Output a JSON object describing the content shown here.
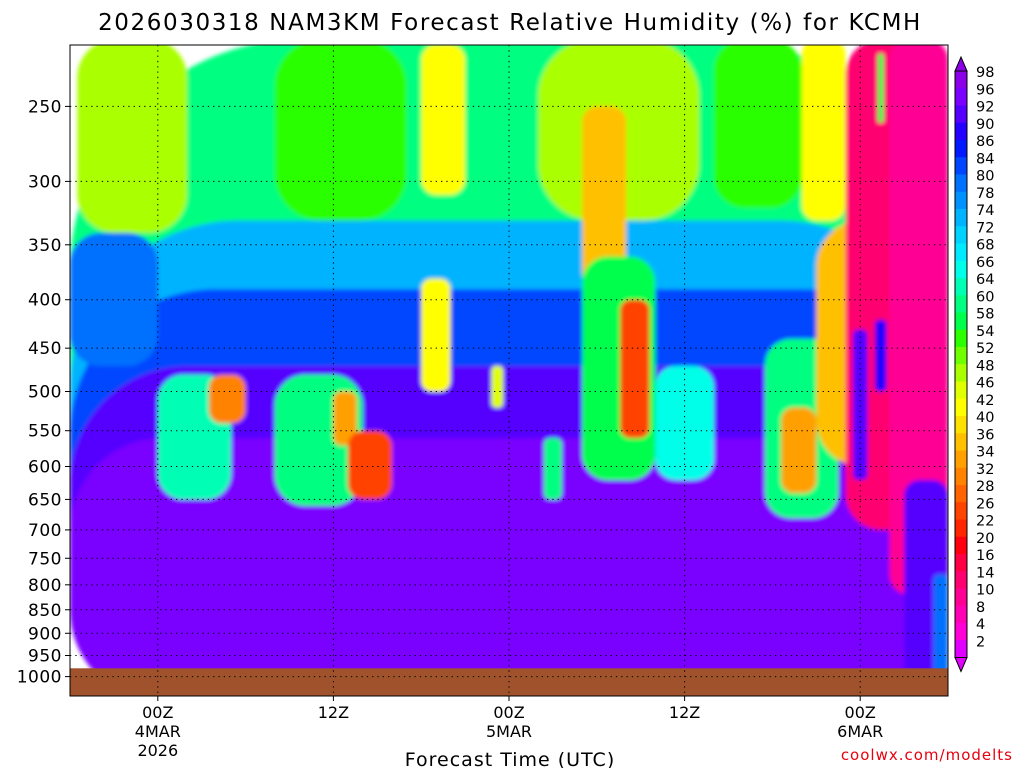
{
  "chart_data": {
    "type": "heatmap",
    "title": "2026030318 NAM3KM Forecast Relative Humidity (%) for KCMH",
    "xlabel": "Forecast Time (UTC)",
    "ylabel": "",
    "y_axis": {
      "scale": "log-pressure",
      "range": [
        1000,
        200
      ],
      "ticks": [
        "250",
        "300",
        "350",
        "400",
        "450",
        "500",
        "550",
        "600",
        "650",
        "700",
        "750",
        "800",
        "850",
        "900",
        "950",
        "1000"
      ]
    },
    "x_axis": {
      "range_hours": [
        0,
        60
      ],
      "ticks": [
        {
          "hour": 6,
          "lines": [
            "00Z",
            "4MAR",
            "2026"
          ]
        },
        {
          "hour": 18,
          "lines": [
            "12Z"
          ]
        },
        {
          "hour": 30,
          "lines": [
            "00Z",
            "5MAR"
          ]
        },
        {
          "hour": 42,
          "lines": [
            "12Z"
          ]
        },
        {
          "hour": 54,
          "lines": [
            "00Z",
            "6MAR"
          ]
        }
      ]
    },
    "colorbar": {
      "labels": [
        "98",
        "96",
        "92",
        "90",
        "86",
        "84",
        "80",
        "78",
        "74",
        "72",
        "68",
        "66",
        "64",
        "60",
        "58",
        "54",
        "52",
        "48",
        "46",
        "42",
        "40",
        "36",
        "34",
        "32",
        "28",
        "26",
        "22",
        "20",
        "16",
        "14",
        "10",
        "8",
        "4",
        "2"
      ],
      "colors": [
        "#8b00e8",
        "#7a00ff",
        "#5500ff",
        "#2400ff",
        "#0019ff",
        "#0046ff",
        "#0070ff",
        "#0093ff",
        "#00b3ff",
        "#00d2ff",
        "#00eaff",
        "#00ffe8",
        "#00ffb5",
        "#00ff80",
        "#00ff4d",
        "#2bff00",
        "#6fff00",
        "#aaff00",
        "#e0ff00",
        "#ffff00",
        "#ffe100",
        "#ffc000",
        "#ffa000",
        "#ff8200",
        "#ff6400",
        "#ff4300",
        "#ff2600",
        "#ff0010",
        "#ff0045",
        "#ff0070",
        "#ff0094",
        "#ff00b5",
        "#ff00d6",
        "#e000ff"
      ],
      "mapping_rh_to_label_index": "(98 - rh) / 3"
    },
    "ground_below_hpa": 980,
    "field_notes": "Upper levels (200-330 hPa) 40-66% RH; 330-440 hPa 70-86%; 450-1000 hPa mostly 90-98%. Dry pockets ~20-30% near 500 hPa (hr 10-12), 550-650 hPa (hr 20-22), 400-550 hPa (hr 38-39); very dry air (<10%) from hr 53 onward above 600 hPa, extending to 800 hPa by hr 60.",
    "regions": [
      {
        "h0": 0,
        "h1": 60,
        "p0": 200,
        "p1": 1000,
        "rh": 58
      },
      {
        "h0": 0,
        "h1": 60,
        "p0": 330,
        "p1": 1000,
        "rh": 73
      },
      {
        "h0": 0,
        "h1": 60,
        "p0": 390,
        "p1": 1000,
        "rh": 84
      },
      {
        "h0": 0,
        "h1": 60,
        "p0": 470,
        "p1": 1000,
        "rh": 92
      },
      {
        "h0": 0,
        "h1": 60,
        "p0": 560,
        "p1": 1000,
        "rh": 96
      },
      {
        "h0": 0.5,
        "h1": 8,
        "p0": 200,
        "p1": 340,
        "rh": 48
      },
      {
        "h0": 14,
        "h1": 23,
        "p0": 200,
        "p1": 330,
        "rh": 52
      },
      {
        "h0": 32,
        "h1": 43,
        "p0": 200,
        "p1": 330,
        "rh": 46
      },
      {
        "h0": 35,
        "h1": 38,
        "p0": 250,
        "p1": 390,
        "rh": 34
      },
      {
        "h0": 24,
        "h1": 27,
        "p0": 215,
        "p1": 310,
        "rh": 40
      },
      {
        "h0": 44,
        "h1": 50,
        "p0": 200,
        "p1": 320,
        "rh": 54
      },
      {
        "h0": 50,
        "h1": 53,
        "p0": 200,
        "p1": 330,
        "rh": 42
      },
      {
        "h0": 0,
        "h1": 6,
        "p0": 340,
        "p1": 470,
        "rh": 80
      },
      {
        "h0": 6,
        "h1": 11,
        "p0": 480,
        "p1": 650,
        "rh": 62
      },
      {
        "h0": 9.5,
        "h1": 12,
        "p0": 480,
        "p1": 540,
        "rh": 28
      },
      {
        "h0": 14,
        "h1": 20,
        "p0": 480,
        "p1": 660,
        "rh": 58
      },
      {
        "h0": 18,
        "h1": 19.6,
        "p0": 500,
        "p1": 570,
        "rh": 32
      },
      {
        "h0": 19,
        "h1": 22,
        "p0": 550,
        "p1": 650,
        "rh": 24
      },
      {
        "h0": 24,
        "h1": 26,
        "p0": 380,
        "p1": 500,
        "rh": 40
      },
      {
        "h0": 28.8,
        "h1": 29.6,
        "p0": 470,
        "p1": 520,
        "rh": 44
      },
      {
        "h0": 32.4,
        "h1": 33.6,
        "p0": 560,
        "p1": 650,
        "rh": 60
      },
      {
        "h0": 35,
        "h1": 40,
        "p0": 360,
        "p1": 620,
        "rh": 55
      },
      {
        "h0": 37.6,
        "h1": 39.6,
        "p0": 400,
        "p1": 560,
        "rh": 24
      },
      {
        "h0": 40,
        "h1": 44,
        "p0": 470,
        "p1": 620,
        "rh": 64
      },
      {
        "h0": 47.5,
        "h1": 52.5,
        "p0": 440,
        "p1": 680,
        "rh": 60
      },
      {
        "h0": 48.6,
        "h1": 51,
        "p0": 520,
        "p1": 640,
        "rh": 32
      },
      {
        "h0": 51,
        "h1": 60,
        "p0": 330,
        "p1": 600,
        "rh": 36
      },
      {
        "h0": 53,
        "h1": 60,
        "p0": 200,
        "p1": 700,
        "rh": 12
      },
      {
        "h0": 56,
        "h1": 60,
        "p0": 200,
        "p1": 820,
        "rh": 8
      },
      {
        "h0": 53.5,
        "h1": 54.5,
        "p0": 430,
        "p1": 620,
        "rh": 92
      },
      {
        "h0": 55,
        "h1": 55.8,
        "p0": 420,
        "p1": 500,
        "rh": 88
      },
      {
        "h0": 55.2,
        "h1": 55.6,
        "p0": 220,
        "p1": 260,
        "rh": 56
      },
      {
        "h0": 57,
        "h1": 60,
        "p0": 620,
        "p1": 1000,
        "rh": 92
      },
      {
        "h0": 59,
        "h1": 60,
        "p0": 780,
        "p1": 1000,
        "rh": 80
      }
    ]
  },
  "footer": {
    "credit": "coolwx.com/modelts"
  },
  "colors": {
    "ground": "#a0522d",
    "credit": "#e8000e"
  }
}
